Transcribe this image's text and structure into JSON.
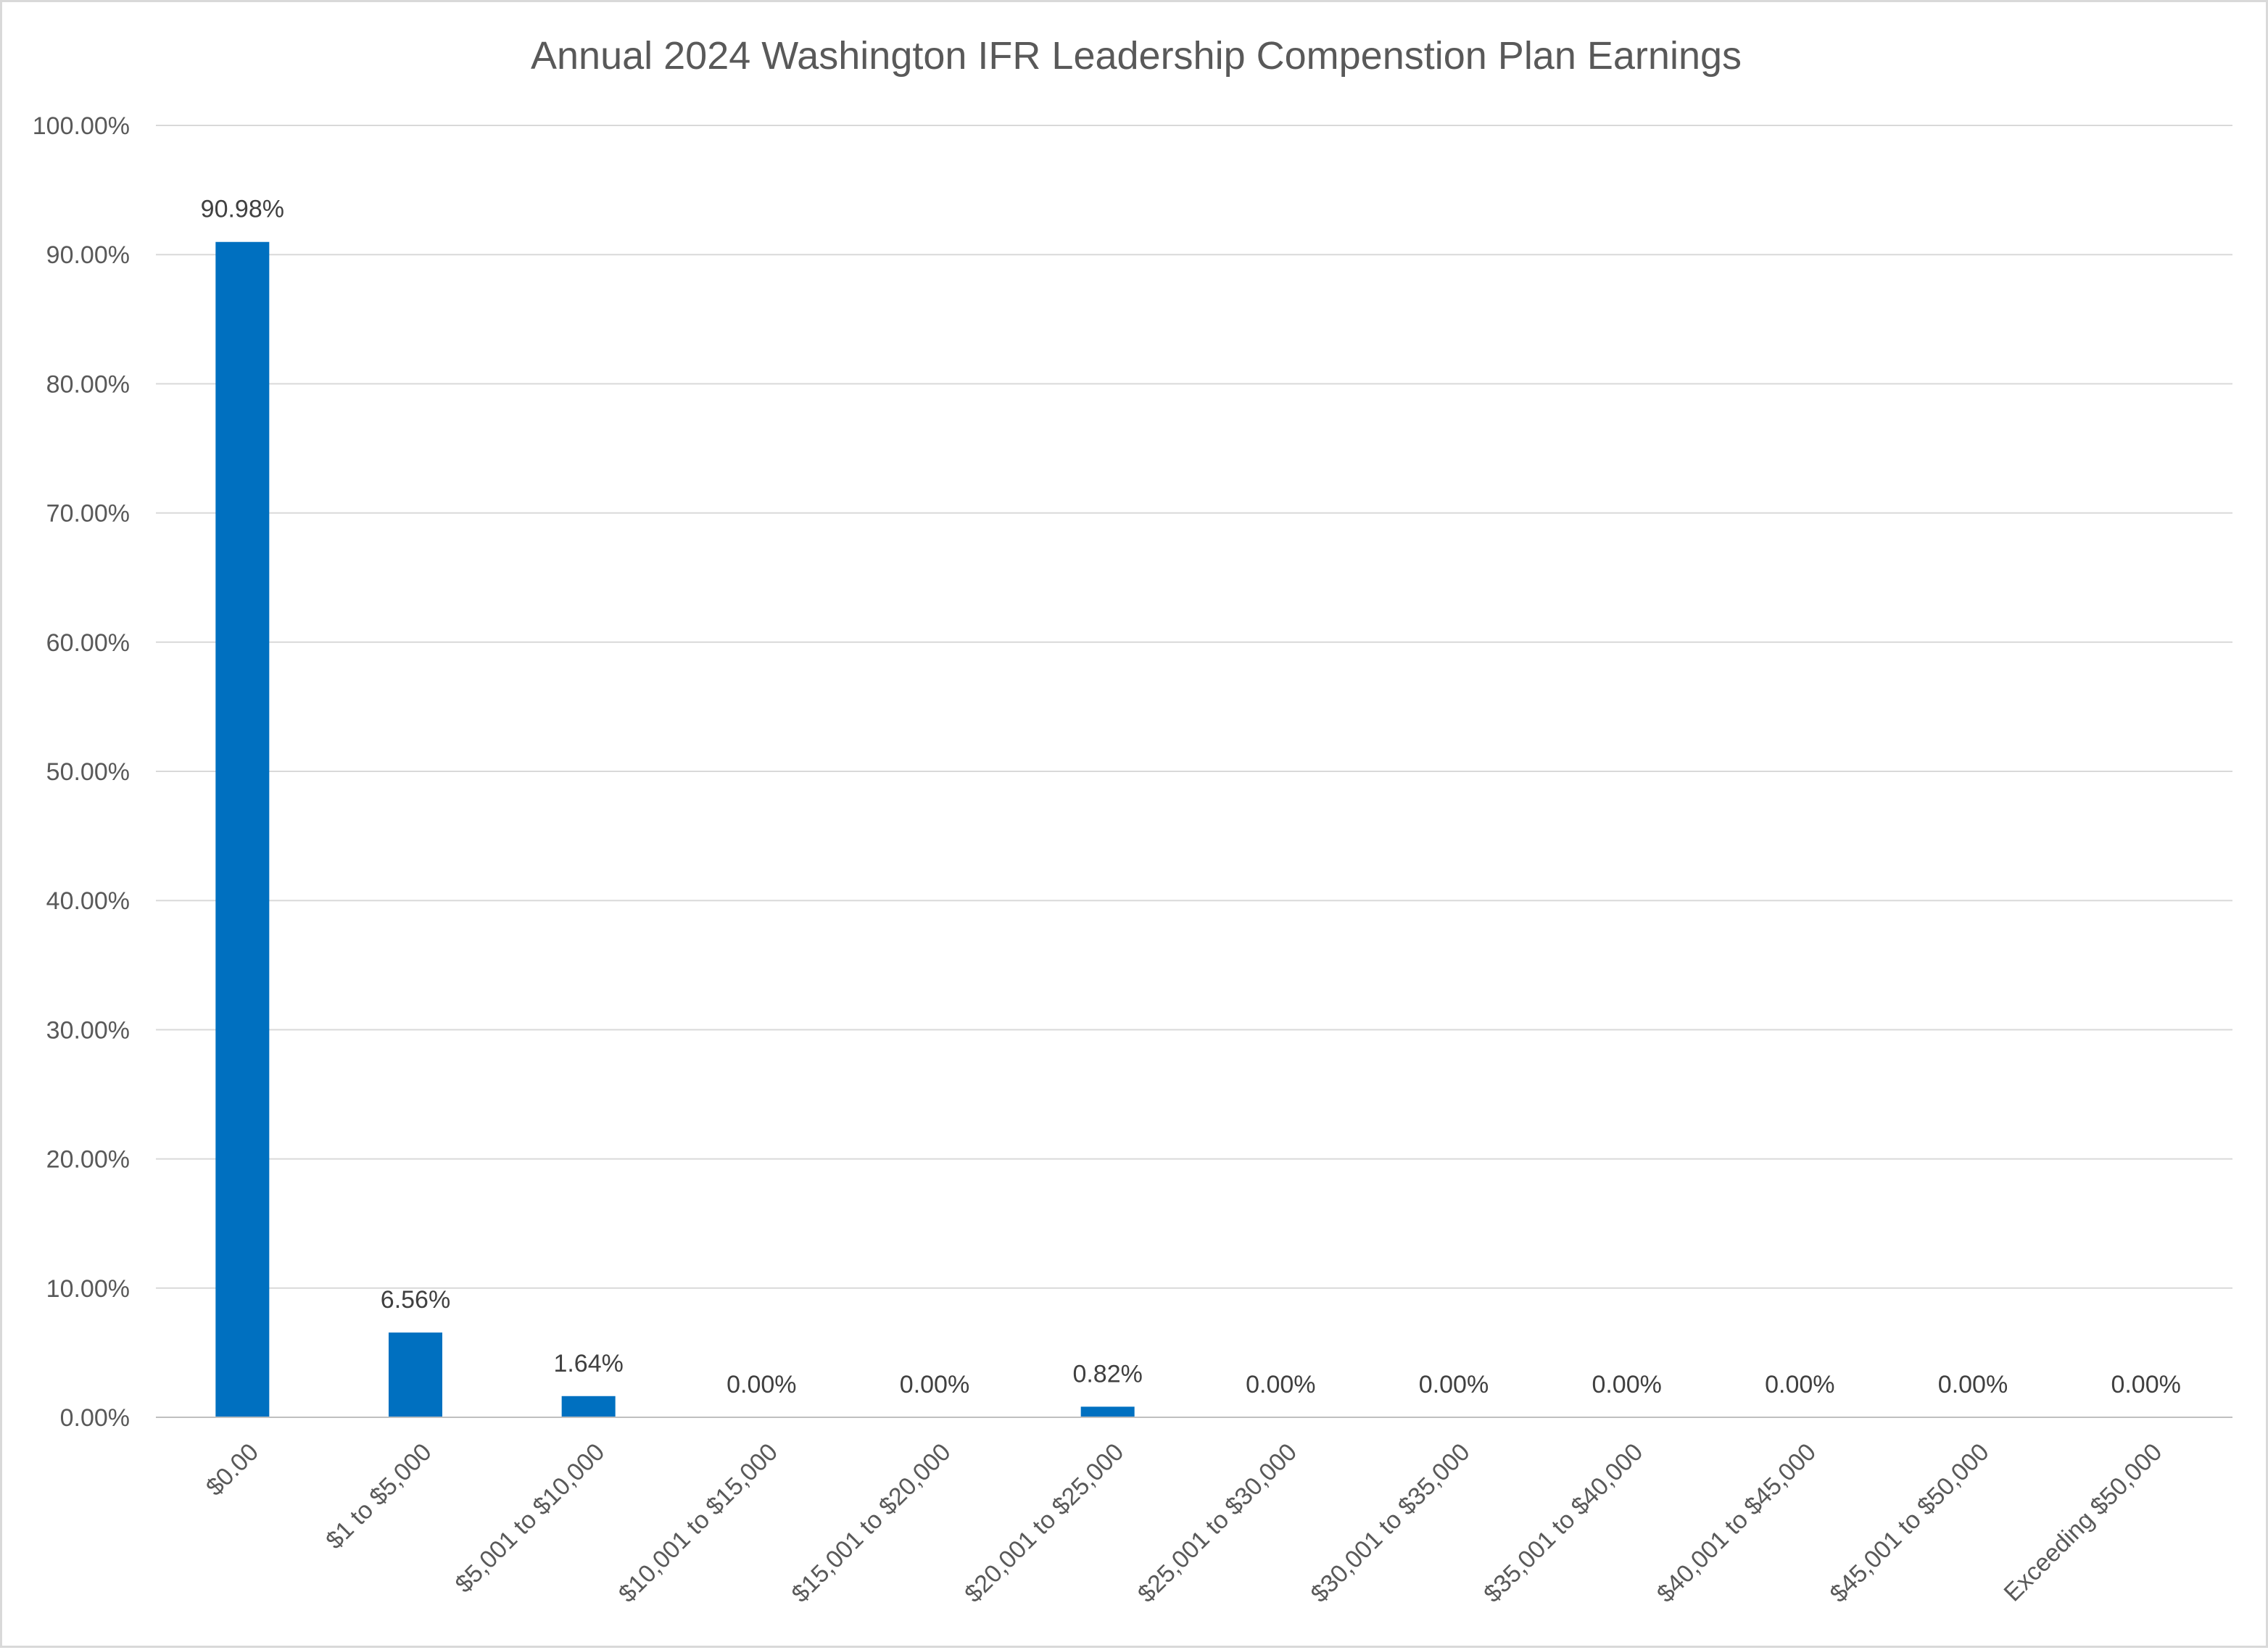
{
  "chart_data": {
    "type": "bar",
    "title": "Annual 2024 Washington IFR Leadership Compenstion Plan Earnings",
    "xlabel": "",
    "ylabel": "",
    "categories": [
      "$0.00",
      "$1 to $5,000",
      "$5,001 to $10,000",
      "$10,001 to $15,000",
      "$15,001 to $20,000",
      "$20,001 to $25,000",
      "$25,001 to $30,000",
      "$30,001 to $35,000",
      "$35,001 to $40,000",
      "$40,001 to $45,000",
      "$45,001 to $50,000",
      "Exceeding $50,000"
    ],
    "values": [
      90.98,
      6.56,
      1.64,
      0.0,
      0.0,
      0.82,
      0.0,
      0.0,
      0.0,
      0.0,
      0.0,
      0.0
    ],
    "data_labels": [
      "90.98%",
      "6.56%",
      "1.64%",
      "0.00%",
      "0.00%",
      "0.82%",
      "0.00%",
      "0.00%",
      "0.00%",
      "0.00%",
      "0.00%",
      "0.00%"
    ],
    "ylim": [
      0,
      100
    ],
    "yticks": [
      0,
      10,
      20,
      30,
      40,
      50,
      60,
      70,
      80,
      90,
      100
    ],
    "ytick_labels": [
      "0.00%",
      "10.00%",
      "20.00%",
      "30.00%",
      "40.00%",
      "50.00%",
      "60.00%",
      "70.00%",
      "80.00%",
      "90.00%",
      "100.00%"
    ],
    "grid": true,
    "legend": "none",
    "colors": {
      "bar": "#0070C0",
      "grid": "#d9d9d9",
      "axis": "#bfbfbf",
      "text": "#595959"
    }
  }
}
